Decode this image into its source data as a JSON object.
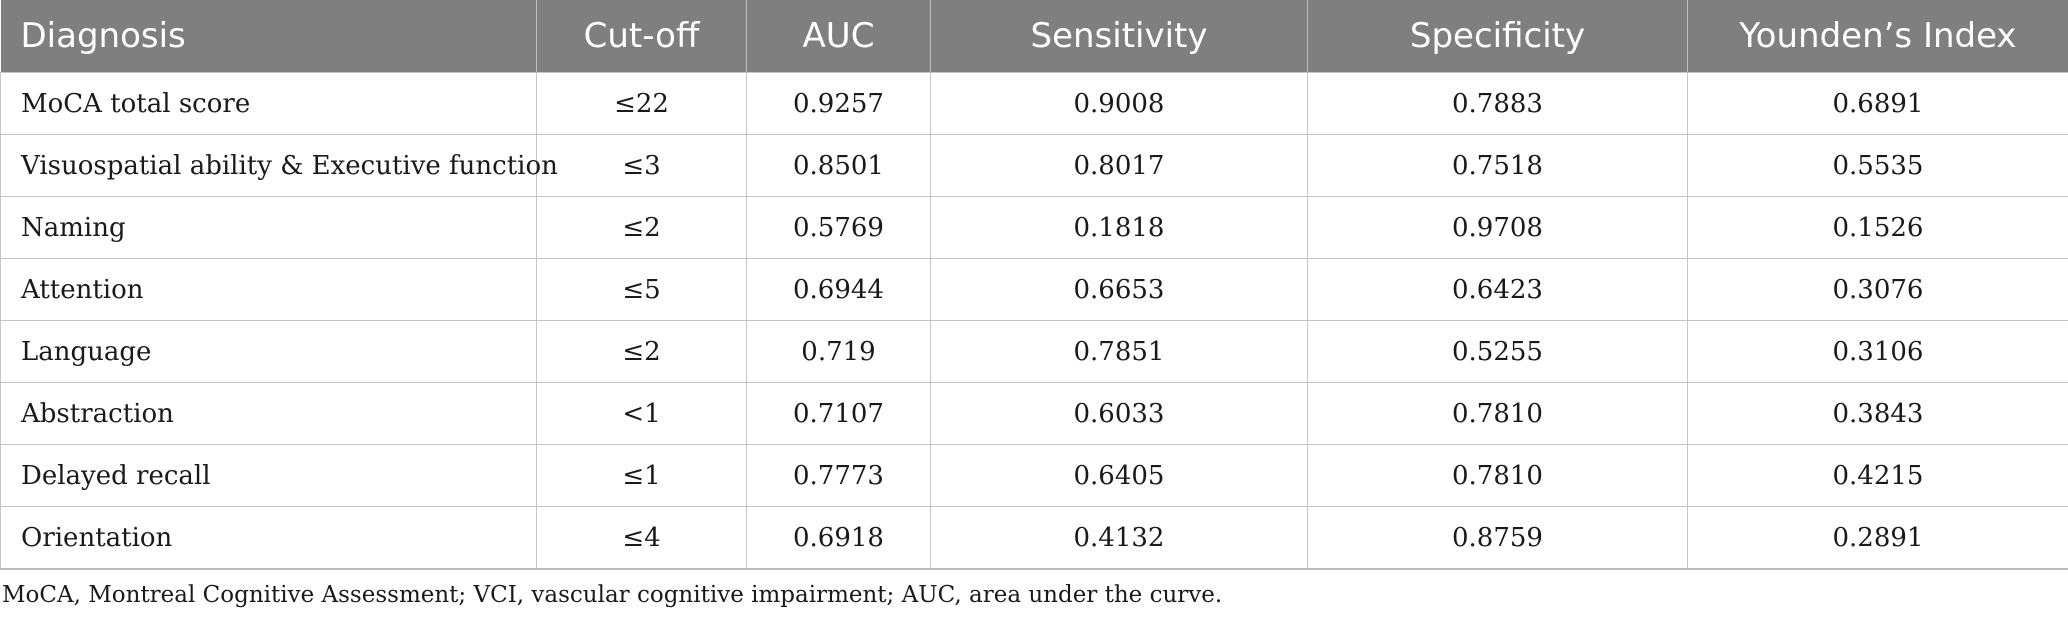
{
  "table": {
    "headers": [
      "Diagnosis",
      "Cut-off",
      "AUC",
      "Sensitivity",
      "Specificity",
      "Younden’s Index"
    ],
    "rows": [
      [
        "MoCA total score",
        "≤22",
        "0.9257",
        "0.9008",
        "0.7883",
        "0.6891"
      ],
      [
        "Visuospatial ability & Executive function",
        "≤3",
        "0.8501",
        "0.8017",
        "0.7518",
        "0.5535"
      ],
      [
        "Naming",
        "≤2",
        "0.5769",
        "0.1818",
        "0.9708",
        "0.1526"
      ],
      [
        "Attention",
        "≤5",
        "0.6944",
        "0.6653",
        "0.6423",
        "0.3076"
      ],
      [
        "Language",
        "≤2",
        "0.719",
        "0.7851",
        "0.5255",
        "0.3106"
      ],
      [
        "Abstraction",
        "<1",
        "0.7107",
        "0.6033",
        "0.7810",
        "0.3843"
      ],
      [
        "Delayed recall",
        "≤1",
        "0.7773",
        "0.6405",
        "0.7810",
        "0.4215"
      ],
      [
        "Orientation",
        "≤4",
        "0.6918",
        "0.4132",
        "0.8759",
        "0.2891"
      ]
    ]
  },
  "footnote": "MoCA, Montreal Cognitive Assessment; VCI, vascular cognitive impairment; AUC, area under the curve.",
  "colors": {
    "header_bg": "#7f7f7f",
    "header_text": "#ffffff",
    "border": "#c4c4c4"
  }
}
